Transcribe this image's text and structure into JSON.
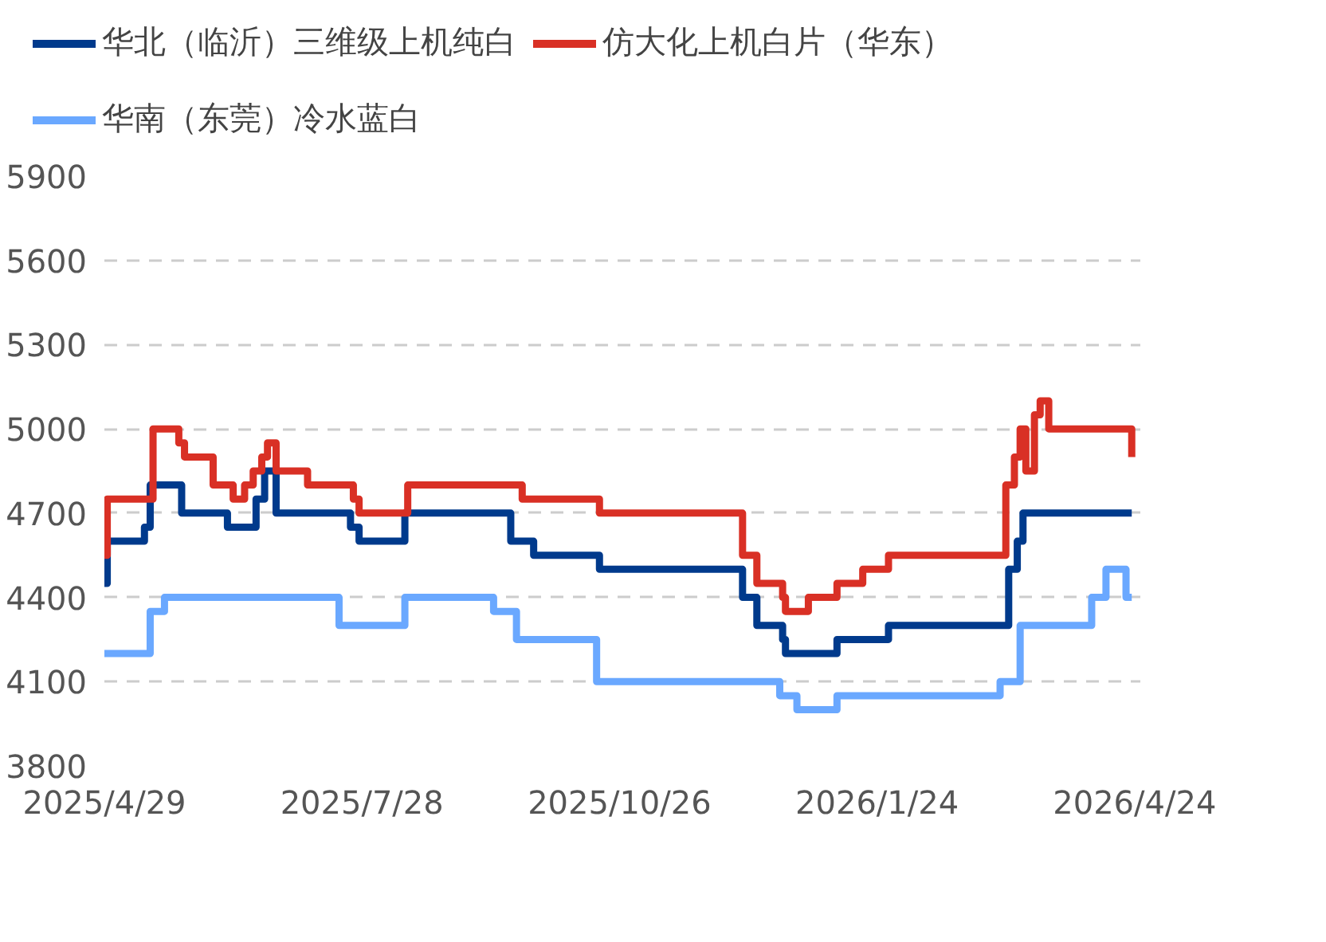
{
  "chart_data": {
    "type": "step",
    "legend": "top",
    "grid": "y",
    "line_style": "solid",
    "marker": "none",
    "xlim": [
      "2025-04-29",
      "2026-04-26"
    ],
    "ylim": [
      3800,
      5900
    ],
    "yticks": [
      3800,
      4100,
      4400,
      4700,
      5000,
      5300,
      5600,
      5900
    ],
    "xticks": [
      {
        "value": "2025-04-29",
        "label": "2025/4/29"
      },
      {
        "value": "2025-07-28",
        "label": "2025/7/28"
      },
      {
        "value": "2025-10-26",
        "label": "2025/10/26"
      },
      {
        "value": "2026-01-24",
        "label": "2026/1/24"
      },
      {
        "value": "2026-04-24",
        "label": "2026/4/24"
      }
    ],
    "series": [
      {
        "name": "华北（临沂）三维级上机纯白",
        "color": "#003a8c",
        "x": [
          "2025-04-29",
          "2025-04-30",
          "2025-05-13",
          "2025-05-15",
          "2025-05-26",
          "2025-06-11",
          "2025-06-21",
          "2025-06-24",
          "2025-06-28",
          "2025-07-24",
          "2025-07-27",
          "2025-08-12",
          "2025-09-18",
          "2025-09-26",
          "2025-10-19",
          "2025-12-08",
          "2025-12-13",
          "2025-12-22",
          "2025-12-23",
          "2026-01-10",
          "2026-01-28",
          "2026-03-11",
          "2026-03-14",
          "2026-03-16",
          "2026-04-23"
        ],
        "values": [
          4450,
          4600,
          4650,
          4800,
          4700,
          4650,
          4750,
          4850,
          4700,
          4650,
          4600,
          4700,
          4600,
          4550,
          4500,
          4400,
          4300,
          4250,
          4200,
          4250,
          4300,
          4500,
          4600,
          4700,
          4700
        ]
      },
      {
        "name": "仿大化上机白片（华东）",
        "color": "#d93025",
        "x": [
          "2025-04-29",
          "2025-04-30",
          "2025-05-16",
          "2025-05-25",
          "2025-05-27",
          "2025-06-06",
          "2025-06-13",
          "2025-06-17",
          "2025-06-20",
          "2025-06-23",
          "2025-06-25",
          "2025-06-28",
          "2025-07-09",
          "2025-07-25",
          "2025-07-27",
          "2025-08-13",
          "2025-09-22",
          "2025-10-19",
          "2025-12-08",
          "2025-12-13",
          "2025-12-22",
          "2025-12-23",
          "2025-12-31",
          "2026-01-10",
          "2026-01-19",
          "2026-01-28",
          "2026-03-10",
          "2026-03-13",
          "2026-03-15",
          "2026-03-17",
          "2026-03-20",
          "2026-03-22",
          "2026-03-25",
          "2026-04-21",
          "2026-04-23"
        ],
        "values": [
          4550,
          4750,
          5000,
          4950,
          4900,
          4800,
          4750,
          4800,
          4850,
          4900,
          4950,
          4850,
          4800,
          4750,
          4700,
          4800,
          4750,
          4700,
          4550,
          4450,
          4400,
          4350,
          4400,
          4450,
          4500,
          4550,
          4800,
          4900,
          5000,
          4850,
          5050,
          5100,
          5000,
          5000,
          4900
        ]
      },
      {
        "name": "华南（东莞）冷水蓝白",
        "color": "#6aa8ff",
        "x": [
          "2025-04-29",
          "2025-05-15",
          "2025-05-20",
          "2025-07-20",
          "2025-08-12",
          "2025-09-12",
          "2025-09-20",
          "2025-10-18",
          "2025-12-21",
          "2025-12-27",
          "2026-01-10",
          "2026-03-08",
          "2026-03-15",
          "2026-04-09",
          "2026-04-14",
          "2026-04-21",
          "2026-04-23"
        ],
        "values": [
          4200,
          4350,
          4400,
          4300,
          4400,
          4350,
          4250,
          4100,
          4050,
          4000,
          4050,
          4100,
          4300,
          4400,
          4500,
          4400,
          4400
        ]
      }
    ]
  }
}
